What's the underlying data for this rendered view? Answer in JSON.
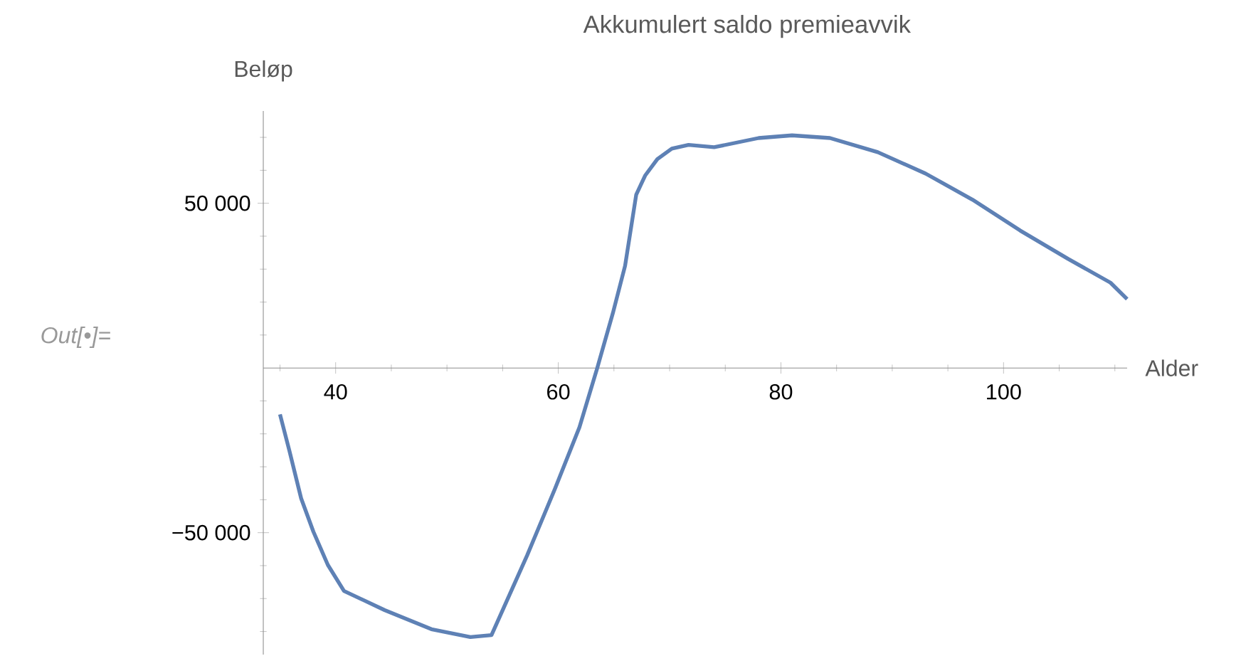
{
  "chart_data": {
    "type": "line",
    "title": "Akkumulert saldo premieavvik",
    "xlabel": "Alder",
    "ylabel": "Beløp",
    "annotations": [
      "Out[•]="
    ],
    "x": [
      35,
      35.85,
      36.9,
      38.0,
      39.3,
      40.75,
      44.4,
      48.6,
      52.1,
      54.0,
      57.2,
      59.7,
      61.9,
      63.5,
      64.9,
      66.0,
      67.0,
      67.8,
      68.9,
      70.2,
      71.7,
      74.0,
      78.0,
      81.0,
      84.4,
      88.7,
      93.0,
      97.2,
      101.5,
      105.8,
      109.6,
      111.1
    ],
    "series": [
      {
        "color": "#5e81b5",
        "values": [
          -14100,
          -25200,
          -39600,
          -49700,
          -59800,
          -67700,
          -73500,
          -79300,
          -81700,
          -81100,
          -56900,
          -36700,
          -18000,
          0,
          16600,
          31000,
          52600,
          58400,
          63400,
          66600,
          67700,
          67000,
          69800,
          70600,
          69800,
          65500,
          59000,
          51100,
          41700,
          33100,
          25900,
          20900
        ]
      }
    ],
    "xlim": [
      33.5,
      111.1
    ],
    "ylim": [
      -87000,
      78000
    ],
    "xticks": [
      {
        "value": 35,
        "label": null
      },
      40,
      {
        "value": 45,
        "label": null
      },
      {
        "value": 50,
        "label": null
      },
      {
        "value": 55,
        "label": null
      },
      60,
      {
        "value": 65,
        "label": null
      },
      {
        "value": 70,
        "label": null
      },
      {
        "value": 75,
        "label": null
      },
      80,
      {
        "value": 85,
        "label": null
      },
      {
        "value": 90,
        "label": null
      },
      {
        "value": 95,
        "label": null
      },
      100,
      {
        "value": 105,
        "label": null
      },
      {
        "value": 110,
        "label": null
      }
    ],
    "yticks": [
      {
        "value": -80000,
        "label": null
      },
      {
        "value": -70000,
        "label": null
      },
      {
        "value": -60000,
        "label": null
      },
      {
        "value": -50000,
        "label": "−50 000"
      },
      {
        "value": -40000,
        "label": null
      },
      {
        "value": -30000,
        "label": null
      },
      {
        "value": -20000,
        "label": null
      },
      {
        "value": -10000,
        "label": null
      },
      {
        "value": 10000,
        "label": null
      },
      {
        "value": 20000,
        "label": null
      },
      {
        "value": 30000,
        "label": null
      },
      {
        "value": 40000,
        "label": null
      },
      {
        "value": 50000,
        "label": "50 000"
      },
      {
        "value": 60000,
        "label": null
      },
      {
        "value": 70000,
        "label": null
      }
    ]
  }
}
